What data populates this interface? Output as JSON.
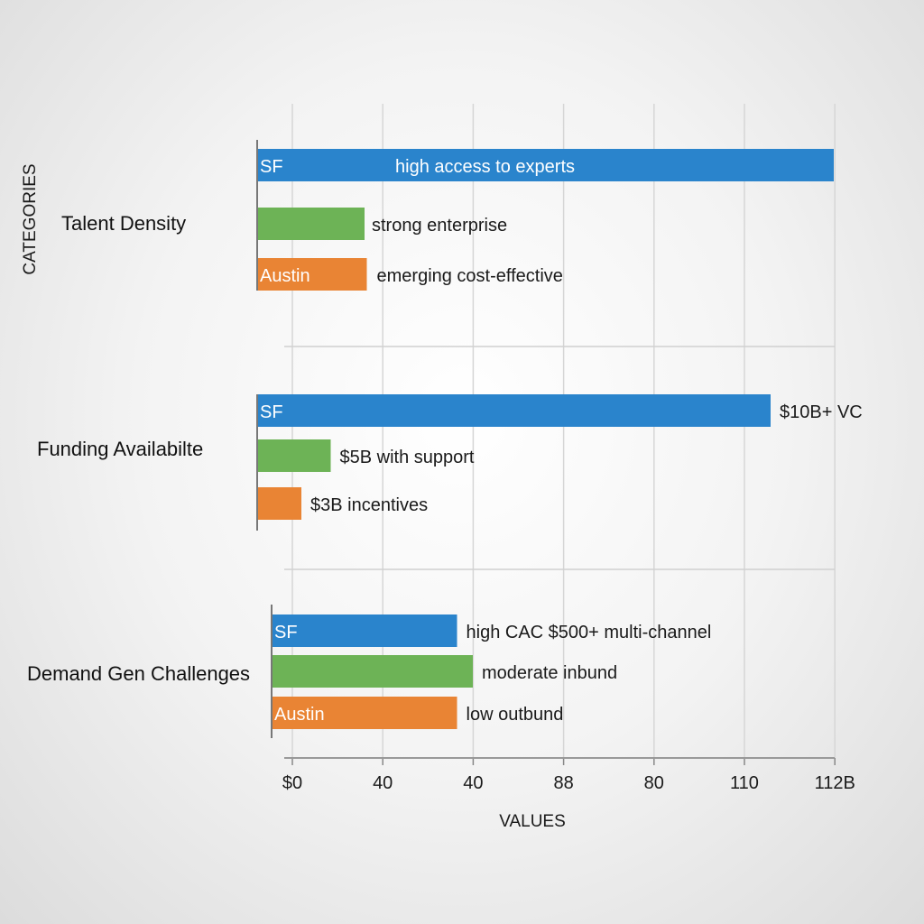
{
  "chart_data": {
    "type": "bar",
    "orientation": "horizontal",
    "title": "",
    "xlabel": "VALUES",
    "ylabel": "CATEGORIES",
    "x_tick_labels": [
      "$0",
      "40",
      "40",
      "88",
      "80",
      "110",
      "112B"
    ],
    "xlim": [
      0,
      120
    ],
    "grid": true,
    "colors": {
      "SF": "#2a84cc",
      "middle": "#6db356",
      "Austin": "#e98434"
    },
    "groups": [
      {
        "category": "Talent Density",
        "bars": [
          {
            "inner_label": "SF",
            "value": 120,
            "annotation": "high access to experts",
            "color": "#2a84cc"
          },
          {
            "inner_label": "",
            "value": 16,
            "annotation": "strong enterprise",
            "color": "#6db356"
          },
          {
            "inner_label": "Austin",
            "value": 16.5,
            "annotation": "emerging cost-effective",
            "color": "#e98434"
          }
        ]
      },
      {
        "category": "Funding Availabilte",
        "bars": [
          {
            "inner_label": "SF",
            "value": 106,
            "annotation": "$10B+ VC",
            "color": "#2a84cc"
          },
          {
            "inner_label": "",
            "value": 8.5,
            "annotation": "$5B with support",
            "color": "#6db356"
          },
          {
            "inner_label": "",
            "value": 2,
            "annotation": "$3B incentives",
            "color": "#e98434"
          }
        ]
      },
      {
        "category": "Demand Gen Challenges",
        "bars": [
          {
            "inner_label": "SF",
            "value": 36.5,
            "annotation": "high CAC $500+ multi-channel",
            "color": "#2a84cc"
          },
          {
            "inner_label": "",
            "value": 40,
            "annotation": "moderate inbund",
            "color": "#6db356"
          },
          {
            "inner_label": "Austin",
            "value": 36.5,
            "annotation": "low outbund",
            "color": "#e98434"
          }
        ]
      }
    ]
  }
}
